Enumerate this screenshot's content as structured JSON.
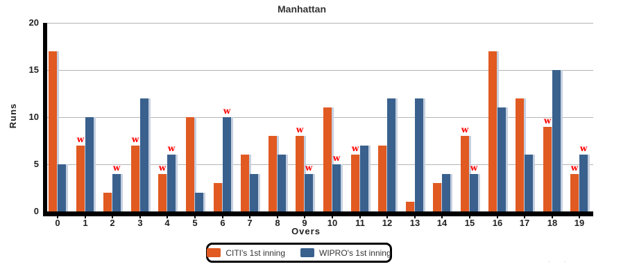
{
  "chart_data": {
    "type": "bar",
    "title": "Manhattan",
    "xlabel": "Overs",
    "ylabel": "Runs",
    "ylim": [
      0,
      20
    ],
    "ytick_step": 5,
    "grid": true,
    "gridline_color": "#b4b4b4",
    "axis_color": "#000000",
    "bar_highlight_color": "#c6d0df",
    "wicket_marker": "w",
    "wicket_color": "#ff0000",
    "legend_position": "bottom",
    "categories": [
      "0",
      "1",
      "2",
      "3",
      "4",
      "5",
      "6",
      "7",
      "8",
      "9",
      "10",
      "11",
      "12",
      "13",
      "14",
      "15",
      "16",
      "17",
      "18",
      "19"
    ],
    "series": [
      {
        "name": "CITI's 1st inning",
        "color": "#E05A22",
        "values": [
          17,
          7,
          2,
          7,
          4,
          10,
          3,
          6,
          8,
          8,
          11,
          6,
          7,
          1,
          3,
          8,
          17,
          12,
          9,
          4
        ],
        "wicket_overs": [
          1,
          3,
          4,
          9,
          11,
          15,
          18,
          19
        ]
      },
      {
        "name": "WIPRO's 1st inning",
        "color": "#3A618E",
        "values": [
          5,
          10,
          4,
          12,
          6,
          2,
          10,
          4,
          6,
          4,
          5,
          7,
          12,
          12,
          4,
          4,
          11,
          6,
          15,
          6
        ],
        "wicket_overs": [
          2,
          4,
          6,
          9,
          10,
          15,
          19
        ]
      }
    ]
  },
  "watermark_dots": "· ·"
}
